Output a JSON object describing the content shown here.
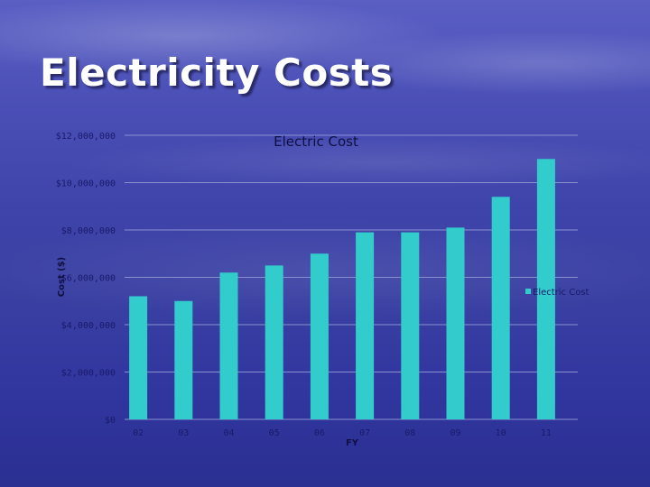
{
  "slide": {
    "title": "Electricity Costs"
  },
  "colors": {
    "bar": "#33cccc",
    "gridline": "#8a8fd0",
    "text": "#1a1a6a"
  },
  "chart_data": {
    "type": "bar",
    "title": "Electric Cost",
    "xlabel": "FY",
    "ylabel": "Cost ($)",
    "categories": [
      "02",
      "03",
      "04",
      "05",
      "06",
      "07",
      "08",
      "09",
      "10",
      "11"
    ],
    "series": [
      {
        "name": "Electric Cost",
        "values": [
          5200000,
          5000000,
          6200000,
          6500000,
          7000000,
          7900000,
          7900000,
          8100000,
          9400000,
          11000000
        ]
      }
    ],
    "y_ticks": [
      {
        "value": 0,
        "label": "$0"
      },
      {
        "value": 2000000,
        "label": "$2,000,000"
      },
      {
        "value": 4000000,
        "label": "$4,000,000"
      },
      {
        "value": 6000000,
        "label": "$6,000,000"
      },
      {
        "value": 8000000,
        "label": "$8,000,000"
      },
      {
        "value": 10000000,
        "label": "$10,000,000"
      },
      {
        "value": 12000000,
        "label": "$12,000,000"
      }
    ],
    "ylim": [
      0,
      12000000
    ],
    "grid": true,
    "legend_position": "right"
  }
}
